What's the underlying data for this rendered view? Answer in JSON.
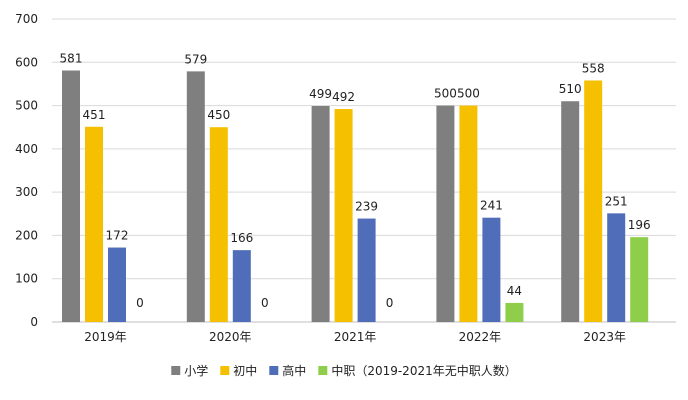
{
  "chart_data": {
    "type": "bar",
    "title": "",
    "xlabel": "",
    "ylabel": "",
    "ylim": [
      0,
      700
    ],
    "yticks": [
      0,
      100,
      200,
      300,
      400,
      500,
      600,
      700
    ],
    "grid": true,
    "legend_position": "bottom",
    "categories": [
      "2019年",
      "2020年",
      "2021年",
      "2022年",
      "2023年"
    ],
    "series": [
      {
        "name": "小学",
        "color": "#7f7f7f",
        "values": [
          581,
          579,
          499,
          500,
          510
        ]
      },
      {
        "name": "初中",
        "color": "#f5c000",
        "values": [
          451,
          450,
          492,
          500,
          558
        ]
      },
      {
        "name": "高中",
        "color": "#4f6db8",
        "values": [
          172,
          166,
          239,
          241,
          251
        ]
      },
      {
        "name": "中职（2019-2021年无中职人数）",
        "color": "#8fce4a",
        "values": [
          0,
          0,
          0,
          44,
          196
        ]
      }
    ]
  }
}
